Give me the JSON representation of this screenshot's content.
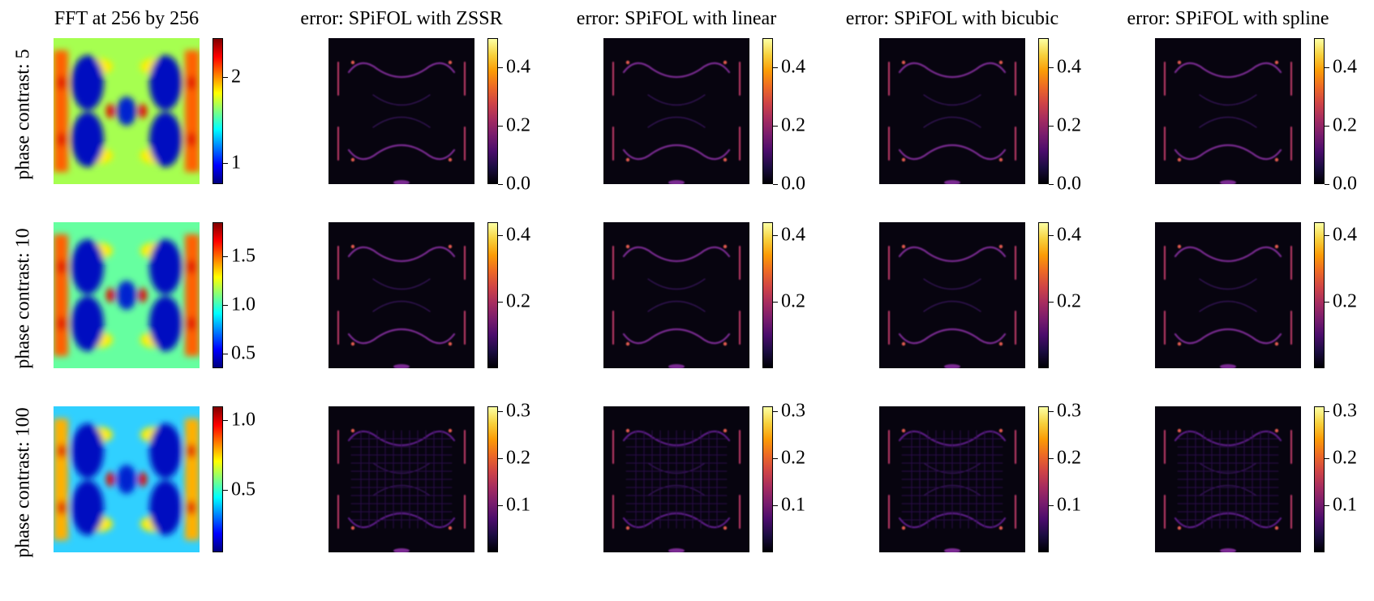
{
  "chart_data": {
    "type": "heatmap",
    "columns": [
      {
        "title": "FFT at 256 by 256",
        "colormap": "jet"
      },
      {
        "title": "error: SPiFOL with ZSSR",
        "colormap": "inferno"
      },
      {
        "title": "error: SPiFOL with linear",
        "colormap": "inferno"
      },
      {
        "title": "error: SPiFOL with bicubic",
        "colormap": "inferno"
      },
      {
        "title": "error: SPiFOL with spline",
        "colormap": "inferno"
      }
    ],
    "rows": [
      {
        "label": "phase contrast: 5",
        "colorbars": [
          {
            "range": [
              0.75,
              2.45
            ],
            "ticks": [
              1,
              2
            ],
            "tick_labels": [
              "1",
              "2"
            ]
          },
          {
            "range": [
              0.0,
              0.5
            ],
            "ticks": [
              0.0,
              0.2,
              0.4
            ],
            "tick_labels": [
              "0.0",
              "0.2",
              "0.4"
            ]
          },
          {
            "range": [
              0.0,
              0.5
            ],
            "ticks": [
              0.0,
              0.2,
              0.4
            ],
            "tick_labels": [
              "0.0",
              "0.2",
              "0.4"
            ]
          },
          {
            "range": [
              0.0,
              0.5
            ],
            "ticks": [
              0.0,
              0.2,
              0.4
            ],
            "tick_labels": [
              "0.0",
              "0.2",
              "0.4"
            ]
          },
          {
            "range": [
              0.0,
              0.5
            ],
            "ticks": [
              0.0,
              0.2,
              0.4
            ],
            "tick_labels": [
              "0.0",
              "0.2",
              "0.4"
            ]
          }
        ]
      },
      {
        "label": "phase contrast: 10",
        "colorbars": [
          {
            "range": [
              0.35,
              1.85
            ],
            "ticks": [
              0.5,
              1.0,
              1.5
            ],
            "tick_labels": [
              "0.5",
              "1.0",
              "1.5"
            ]
          },
          {
            "range": [
              0.0,
              0.44
            ],
            "ticks": [
              0.2,
              0.4
            ],
            "tick_labels": [
              "0.2",
              "0.4"
            ]
          },
          {
            "range": [
              0.0,
              0.44
            ],
            "ticks": [
              0.2,
              0.4
            ],
            "tick_labels": [
              "0.2",
              "0.4"
            ]
          },
          {
            "range": [
              0.0,
              0.44
            ],
            "ticks": [
              0.2,
              0.4
            ],
            "tick_labels": [
              "0.2",
              "0.4"
            ]
          },
          {
            "range": [
              0.0,
              0.44
            ],
            "ticks": [
              0.2,
              0.4
            ],
            "tick_labels": [
              "0.2",
              "0.4"
            ]
          }
        ]
      },
      {
        "label": "phase contrast: 100",
        "colorbars": [
          {
            "range": [
              0.05,
              1.1
            ],
            "ticks": [
              0.5,
              1.0
            ],
            "tick_labels": [
              "0.5",
              "1.0"
            ]
          },
          {
            "range": [
              0.0,
              0.31
            ],
            "ticks": [
              0.1,
              0.2,
              0.3
            ],
            "tick_labels": [
              "0.1",
              "0.2",
              "0.3"
            ]
          },
          {
            "range": [
              0.0,
              0.31
            ],
            "ticks": [
              0.1,
              0.2,
              0.3
            ],
            "tick_labels": [
              "0.1",
              "0.2",
              "0.3"
            ]
          },
          {
            "range": [
              0.0,
              0.31
            ],
            "ticks": [
              0.1,
              0.2,
              0.3
            ],
            "tick_labels": [
              "0.1",
              "0.2",
              "0.3"
            ]
          },
          {
            "range": [
              0.0,
              0.31
            ],
            "ticks": [
              0.1,
              0.2,
              0.3
            ],
            "tick_labels": [
              "0.1",
              "0.2",
              "0.3"
            ]
          }
        ]
      }
    ],
    "grid": false
  }
}
